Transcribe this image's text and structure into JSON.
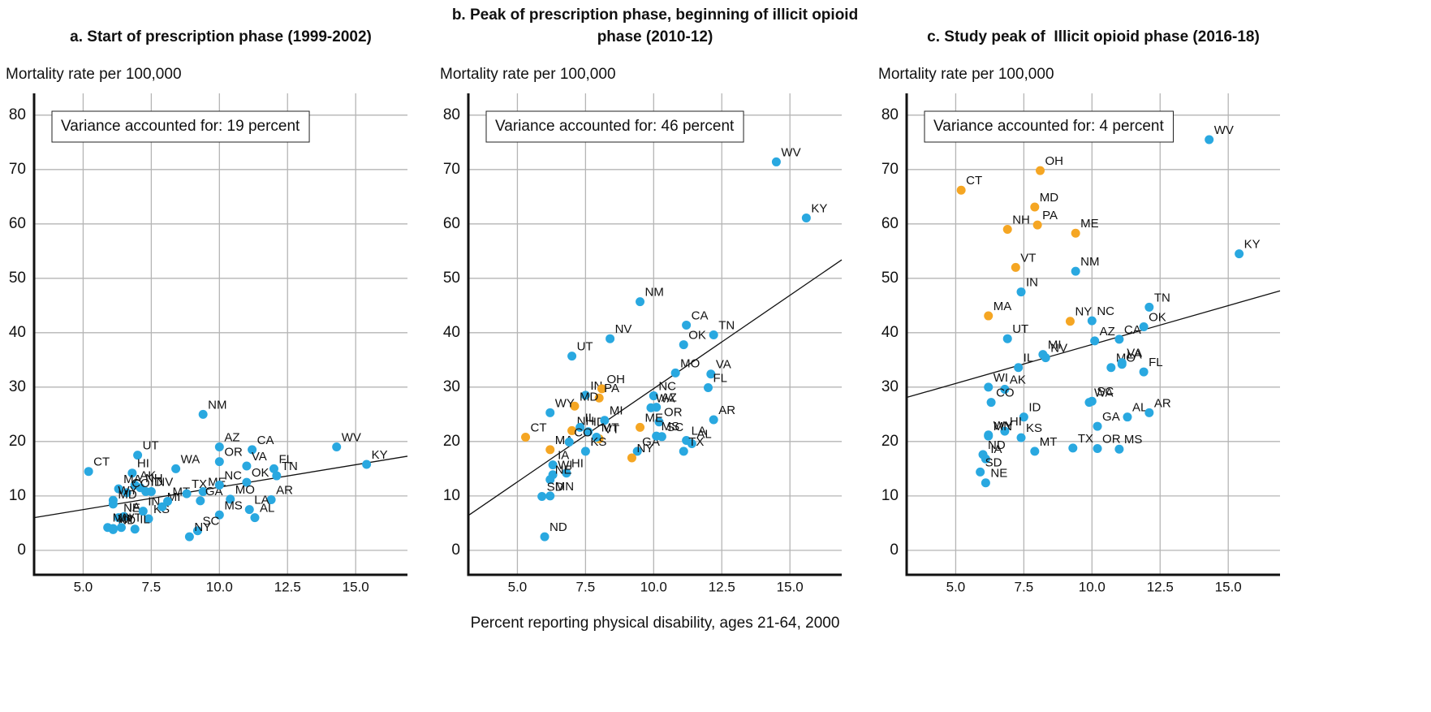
{
  "chart_data": [
    {
      "type": "scatter",
      "title": "a. Start of prescription phase (1999-2002)",
      "ylabel": "Mortality rate per 100,000",
      "annotation": "Variance accounted for: 19 percent",
      "xlim": [
        3.2,
        16.9
      ],
      "ylim": [
        -4.5,
        84
      ],
      "xticks": [
        {
          "value": 5,
          "label": "5.0"
        },
        7.5,
        {
          "value": 10,
          "label": "10.0"
        },
        12.5,
        {
          "value": 15,
          "label": "15.0"
        }
      ],
      "yticks": [
        0,
        10,
        20,
        30,
        40,
        50,
        60,
        70,
        80
      ],
      "grid": true,
      "trend": {
        "x": [
          3.2,
          16.9
        ],
        "y": [
          6.0,
          17.3
        ]
      },
      "points": [
        {
          "label": "CT",
          "x": 5.2,
          "y": 14.5,
          "color": "#29a8e0"
        },
        {
          "label": "UT",
          "x": 7.0,
          "y": 17.5,
          "color": "#29a8e0"
        },
        {
          "label": "HI",
          "x": 6.8,
          "y": 14.2,
          "color": "#29a8e0"
        },
        {
          "label": "AK",
          "x": 6.9,
          "y": 12.0,
          "color": "#29a8e0"
        },
        {
          "label": "NH",
          "x": 7.1,
          "y": 11.5,
          "color": "#29a8e0"
        },
        {
          "label": "ID",
          "x": 7.3,
          "y": 10.8,
          "color": "#29a8e0"
        },
        {
          "label": "MA",
          "x": 6.3,
          "y": 11.3,
          "color": "#29a8e0"
        },
        {
          "label": "CO",
          "x": 6.6,
          "y": 10.6,
          "color": "#29a8e0"
        },
        {
          "label": "MD",
          "x": 6.1,
          "y": 8.5,
          "color": "#29a8e0"
        },
        {
          "label": "WY",
          "x": 6.1,
          "y": 9.2,
          "color": "#29a8e0"
        },
        {
          "label": "NE",
          "x": 6.3,
          "y": 6.0,
          "color": "#29a8e0"
        },
        {
          "label": "IA",
          "x": 6.5,
          "y": 6.2,
          "color": "#29a8e0"
        },
        {
          "label": "MN",
          "x": 5.9,
          "y": 4.2,
          "color": "#29a8e0"
        },
        {
          "label": "WI",
          "x": 6.1,
          "y": 4.0,
          "color": "#29a8e0"
        },
        {
          "label": "ND",
          "x": 6.1,
          "y": 3.8,
          "color": "#29a8e0"
        },
        {
          "label": "VT",
          "x": 6.4,
          "y": 4.2,
          "color": "#29a8e0"
        },
        {
          "label": "KS",
          "x": 7.4,
          "y": 5.8,
          "color": "#29a8e0"
        },
        {
          "label": "IL",
          "x": 6.9,
          "y": 3.9,
          "color": "#29a8e0"
        },
        {
          "label": "IN",
          "x": 7.2,
          "y": 7.2,
          "color": "#29a8e0"
        },
        {
          "label": "MI",
          "x": 7.9,
          "y": 8.0,
          "color": "#29a8e0"
        },
        {
          "label": "MT",
          "x": 8.1,
          "y": 9.0,
          "color": "#29a8e0"
        },
        {
          "label": "TX",
          "x": 8.8,
          "y": 10.4,
          "color": "#29a8e0"
        },
        {
          "label": "NV",
          "x": 7.5,
          "y": 10.8,
          "color": "#29a8e0"
        },
        {
          "label": "WA",
          "x": 8.4,
          "y": 15.0,
          "color": "#29a8e0"
        },
        {
          "label": "ME",
          "x": 9.4,
          "y": 10.8,
          "color": "#29a8e0"
        },
        {
          "label": "GA",
          "x": 9.3,
          "y": 9.1,
          "color": "#29a8e0"
        },
        {
          "label": "NM",
          "x": 9.4,
          "y": 25.0,
          "color": "#29a8e0"
        },
        {
          "label": "AZ",
          "x": 10.0,
          "y": 19.0,
          "color": "#29a8e0"
        },
        {
          "label": "OR",
          "x": 10.0,
          "y": 16.3,
          "color": "#29a8e0"
        },
        {
          "label": "CA",
          "x": 11.2,
          "y": 18.5,
          "color": "#29a8e0"
        },
        {
          "label": "VA",
          "x": 11.0,
          "y": 15.5,
          "color": "#29a8e0"
        },
        {
          "label": "FL",
          "x": 12.0,
          "y": 15.0,
          "color": "#29a8e0"
        },
        {
          "label": "OK",
          "x": 11.0,
          "y": 12.5,
          "color": "#29a8e0"
        },
        {
          "label": "NC",
          "x": 10.0,
          "y": 12.0,
          "color": "#29a8e0"
        },
        {
          "label": "TN",
          "x": 12.1,
          "y": 13.7,
          "color": "#29a8e0"
        },
        {
          "label": "AR",
          "x": 11.9,
          "y": 9.3,
          "color": "#29a8e0"
        },
        {
          "label": "LA",
          "x": 11.1,
          "y": 7.5,
          "color": "#29a8e0"
        },
        {
          "label": "AL",
          "x": 11.3,
          "y": 6.0,
          "color": "#29a8e0"
        },
        {
          "label": "MO",
          "x": 10.4,
          "y": 9.4,
          "color": "#29a8e0"
        },
        {
          "label": "MS",
          "x": 10.0,
          "y": 6.5,
          "color": "#29a8e0"
        },
        {
          "label": "SC",
          "x": 9.2,
          "y": 3.6,
          "color": "#29a8e0"
        },
        {
          "label": "NY",
          "x": 8.9,
          "y": 2.5,
          "color": "#29a8e0"
        },
        {
          "label": "WV",
          "x": 14.3,
          "y": 19.0,
          "color": "#29a8e0"
        },
        {
          "label": "KY",
          "x": 15.4,
          "y": 15.8,
          "color": "#29a8e0"
        }
      ]
    },
    {
      "type": "scatter",
      "title": "b. Peak of prescription phase, beginning of illicit opioid phase (2010-12)",
      "ylabel": "Mortality rate per 100,000",
      "xlabel": "Percent reporting physical disability, ages 21-64, 2000",
      "annotation": "Variance accounted for: 46 percent",
      "xlim": [
        3.2,
        16.9
      ],
      "ylim": [
        -4.5,
        84
      ],
      "xticks": [
        {
          "value": 5,
          "label": "5.0"
        },
        7.5,
        {
          "value": 10,
          "label": "10.0"
        },
        12.5,
        {
          "value": 15,
          "label": "15.0"
        }
      ],
      "yticks": [
        0,
        10,
        20,
        30,
        40,
        50,
        60,
        70,
        80
      ],
      "grid": true,
      "trend": {
        "x": [
          3.2,
          16.9
        ],
        "y": [
          6.4,
          53.4
        ]
      },
      "points": [
        {
          "label": "WV",
          "x": 14.5,
          "y": 71.4,
          "color": "#29a8e0"
        },
        {
          "label": "KY",
          "x": 15.6,
          "y": 61.1,
          "color": "#29a8e0"
        },
        {
          "label": "NM",
          "x": 9.5,
          "y": 45.7,
          "color": "#29a8e0"
        },
        {
          "label": "CA",
          "x": 11.2,
          "y": 41.4,
          "color": "#29a8e0"
        },
        {
          "label": "TN",
          "x": 12.2,
          "y": 39.6,
          "color": "#29a8e0"
        },
        {
          "label": "OK",
          "x": 11.1,
          "y": 37.8,
          "color": "#29a8e0"
        },
        {
          "label": "NV",
          "x": 8.4,
          "y": 38.9,
          "color": "#29a8e0"
        },
        {
          "label": "UT",
          "x": 7.0,
          "y": 35.7,
          "color": "#29a8e0"
        },
        {
          "label": "MO",
          "x": 10.8,
          "y": 32.6,
          "color": "#29a8e0"
        },
        {
          "label": "VA",
          "x": 12.1,
          "y": 32.4,
          "color": "#29a8e0"
        },
        {
          "label": "FL",
          "x": 12.0,
          "y": 29.9,
          "color": "#29a8e0"
        },
        {
          "label": "AR",
          "x": 12.2,
          "y": 24.0,
          "color": "#29a8e0"
        },
        {
          "label": "NC",
          "x": 10.0,
          "y": 28.4,
          "color": "#29a8e0"
        },
        {
          "label": "AZ",
          "x": 10.1,
          "y": 26.3,
          "color": "#29a8e0"
        },
        {
          "label": "WA",
          "x": 9.9,
          "y": 26.2,
          "color": "#29a8e0"
        },
        {
          "label": "OR",
          "x": 10.2,
          "y": 23.6,
          "color": "#29a8e0"
        },
        {
          "label": "SC",
          "x": 10.3,
          "y": 20.9,
          "color": "#29a8e0"
        },
        {
          "label": "ME",
          "x": 9.5,
          "y": 22.6,
          "color": "#f5a623"
        },
        {
          "label": "LA",
          "x": 11.2,
          "y": 20.2,
          "color": "#29a8e0"
        },
        {
          "label": "AL",
          "x": 11.4,
          "y": 19.6,
          "color": "#29a8e0"
        },
        {
          "label": "GA",
          "x": 9.4,
          "y": 18.2,
          "color": "#29a8e0"
        },
        {
          "label": "MS",
          "x": 10.1,
          "y": 21.0,
          "color": "#29a8e0"
        },
        {
          "label": "TX",
          "x": 11.1,
          "y": 18.2,
          "color": "#29a8e0"
        },
        {
          "label": "NY",
          "x": 9.2,
          "y": 17.0,
          "color": "#f5a623"
        },
        {
          "label": "IN",
          "x": 7.5,
          "y": 28.5,
          "color": "#29a8e0"
        },
        {
          "label": "OH",
          "x": 8.1,
          "y": 29.7,
          "color": "#f5a623"
        },
        {
          "label": "PA",
          "x": 8.0,
          "y": 28.0,
          "color": "#f5a623"
        },
        {
          "label": "MD",
          "x": 7.1,
          "y": 26.5,
          "color": "#f5a623"
        },
        {
          "label": "WY",
          "x": 6.2,
          "y": 25.3,
          "color": "#29a8e0"
        },
        {
          "label": "NH",
          "x": 7.0,
          "y": 22.0,
          "color": "#f5a623"
        },
        {
          "label": "IL",
          "x": 7.3,
          "y": 22.6,
          "color": "#29a8e0"
        },
        {
          "label": "ID",
          "x": 7.6,
          "y": 21.8,
          "color": "#29a8e0"
        },
        {
          "label": "MI",
          "x": 8.2,
          "y": 23.9,
          "color": "#29a8e0"
        },
        {
          "label": "CT",
          "x": 5.3,
          "y": 20.8,
          "color": "#f5a623"
        },
        {
          "label": "MA",
          "x": 6.2,
          "y": 18.5,
          "color": "#f5a623"
        },
        {
          "label": "VT",
          "x": 8.0,
          "y": 20.5,
          "color": "#f5a623"
        },
        {
          "label": "CO",
          "x": 6.9,
          "y": 19.9,
          "color": "#29a8e0"
        },
        {
          "label": "MT",
          "x": 7.9,
          "y": 20.8,
          "color": "#29a8e0"
        },
        {
          "label": "KS",
          "x": 7.5,
          "y": 18.2,
          "color": "#29a8e0"
        },
        {
          "label": "IA",
          "x": 6.3,
          "y": 15.7,
          "color": "#29a8e0"
        },
        {
          "label": "WI",
          "x": 6.3,
          "y": 13.9,
          "color": "#29a8e0"
        },
        {
          "label": "HI",
          "x": 6.8,
          "y": 14.2,
          "color": "#29a8e0"
        },
        {
          "label": "NE",
          "x": 6.2,
          "y": 13.0,
          "color": "#29a8e0"
        },
        {
          "label": "SD",
          "x": 5.9,
          "y": 9.9,
          "color": "#29a8e0"
        },
        {
          "label": "MN",
          "x": 6.2,
          "y": 10.0,
          "color": "#29a8e0"
        },
        {
          "label": "ND",
          "x": 6.0,
          "y": 2.5,
          "color": "#29a8e0"
        }
      ]
    },
    {
      "type": "scatter",
      "title": "c. Study peak of  Illicit opioid phase (2016-18)",
      "ylabel": "Mortality rate per 100,000",
      "annotation": "Variance accounted for: 4 percent",
      "xlim": [
        3.2,
        16.9
      ],
      "ylim": [
        -4.5,
        84
      ],
      "xticks": [
        {
          "value": 5,
          "label": "5.0"
        },
        7.5,
        {
          "value": 10,
          "label": "10.0"
        },
        12.5,
        {
          "value": 15,
          "label": "15.0"
        }
      ],
      "yticks": [
        0,
        10,
        20,
        30,
        40,
        50,
        60,
        70,
        80
      ],
      "grid": true,
      "trend": {
        "x": [
          3.2,
          16.9
        ],
        "y": [
          28.1,
          47.7
        ]
      },
      "points": [
        {
          "label": "WV",
          "x": 14.3,
          "y": 75.5,
          "color": "#29a8e0"
        },
        {
          "label": "KY",
          "x": 15.4,
          "y": 54.5,
          "color": "#29a8e0"
        },
        {
          "label": "OH",
          "x": 8.1,
          "y": 69.8,
          "color": "#f5a623"
        },
        {
          "label": "CT",
          "x": 5.2,
          "y": 66.2,
          "color": "#f5a623"
        },
        {
          "label": "MD",
          "x": 7.9,
          "y": 63.1,
          "color": "#f5a623"
        },
        {
          "label": "NH",
          "x": 6.9,
          "y": 59.0,
          "color": "#f5a623"
        },
        {
          "label": "PA",
          "x": 8.0,
          "y": 59.8,
          "color": "#f5a623"
        },
        {
          "label": "ME",
          "x": 9.4,
          "y": 58.3,
          "color": "#f5a623"
        },
        {
          "label": "VT",
          "x": 7.2,
          "y": 52.0,
          "color": "#f5a623"
        },
        {
          "label": "NM",
          "x": 9.4,
          "y": 51.3,
          "color": "#29a8e0"
        },
        {
          "label": "IN",
          "x": 7.4,
          "y": 47.5,
          "color": "#29a8e0"
        },
        {
          "label": "MA",
          "x": 6.2,
          "y": 43.1,
          "color": "#f5a623"
        },
        {
          "label": "NY",
          "x": 9.2,
          "y": 42.1,
          "color": "#f5a623"
        },
        {
          "label": "NC",
          "x": 10.0,
          "y": 42.2,
          "color": "#29a8e0"
        },
        {
          "label": "TN",
          "x": 12.1,
          "y": 44.7,
          "color": "#29a8e0"
        },
        {
          "label": "OK",
          "x": 11.9,
          "y": 41.1,
          "color": "#29a8e0"
        },
        {
          "label": "UT",
          "x": 6.9,
          "y": 38.9,
          "color": "#29a8e0"
        },
        {
          "label": "AZ",
          "x": 10.1,
          "y": 38.5,
          "color": "#29a8e0"
        },
        {
          "label": "CA",
          "x": 11.0,
          "y": 38.8,
          "color": "#29a8e0"
        },
        {
          "label": "MI",
          "x": 8.2,
          "y": 36.0,
          "color": "#29a8e0"
        },
        {
          "label": "NV",
          "x": 8.3,
          "y": 35.4,
          "color": "#29a8e0"
        },
        {
          "label": "IL",
          "x": 7.3,
          "y": 33.6,
          "color": "#29a8e0"
        },
        {
          "label": "MO",
          "x": 10.7,
          "y": 33.6,
          "color": "#29a8e0"
        },
        {
          "label": "LA",
          "x": 11.1,
          "y": 34.2,
          "color": "#29a8e0"
        },
        {
          "label": "VA",
          "x": 11.1,
          "y": 34.5,
          "color": "#29a8e0"
        },
        {
          "label": "FL",
          "x": 11.9,
          "y": 32.8,
          "color": "#29a8e0"
        },
        {
          "label": "WI",
          "x": 6.2,
          "y": 30.0,
          "color": "#29a8e0"
        },
        {
          "label": "AK",
          "x": 6.8,
          "y": 29.6,
          "color": "#29a8e0"
        },
        {
          "label": "SC",
          "x": 10.0,
          "y": 27.4,
          "color": "#29a8e0"
        },
        {
          "label": "WA",
          "x": 9.9,
          "y": 27.2,
          "color": "#29a8e0"
        },
        {
          "label": "CO",
          "x": 6.3,
          "y": 27.2,
          "color": "#29a8e0"
        },
        {
          "label": "AL",
          "x": 11.3,
          "y": 24.5,
          "color": "#29a8e0"
        },
        {
          "label": "AR",
          "x": 12.1,
          "y": 25.3,
          "color": "#29a8e0"
        },
        {
          "label": "ID",
          "x": 7.5,
          "y": 24.5,
          "color": "#29a8e0"
        },
        {
          "label": "WY",
          "x": 6.2,
          "y": 21.2,
          "color": "#29a8e0"
        },
        {
          "label": "HI",
          "x": 6.8,
          "y": 21.9,
          "color": "#29a8e0"
        },
        {
          "label": "GA",
          "x": 10.2,
          "y": 22.8,
          "color": "#29a8e0"
        },
        {
          "label": "KS",
          "x": 7.4,
          "y": 20.7,
          "color": "#29a8e0"
        },
        {
          "label": "MN",
          "x": 6.2,
          "y": 21.0,
          "color": "#29a8e0"
        },
        {
          "label": "TX",
          "x": 9.3,
          "y": 18.8,
          "color": "#29a8e0"
        },
        {
          "label": "OR",
          "x": 10.2,
          "y": 18.7,
          "color": "#29a8e0"
        },
        {
          "label": "MS",
          "x": 11.0,
          "y": 18.6,
          "color": "#29a8e0"
        },
        {
          "label": "MT",
          "x": 7.9,
          "y": 18.2,
          "color": "#29a8e0"
        },
        {
          "label": "ND",
          "x": 6.0,
          "y": 17.6,
          "color": "#29a8e0"
        },
        {
          "label": "IA",
          "x": 6.1,
          "y": 16.8,
          "color": "#29a8e0"
        },
        {
          "label": "SD",
          "x": 5.9,
          "y": 14.4,
          "color": "#29a8e0"
        },
        {
          "label": "NE",
          "x": 6.1,
          "y": 12.4,
          "color": "#29a8e0"
        }
      ]
    }
  ]
}
